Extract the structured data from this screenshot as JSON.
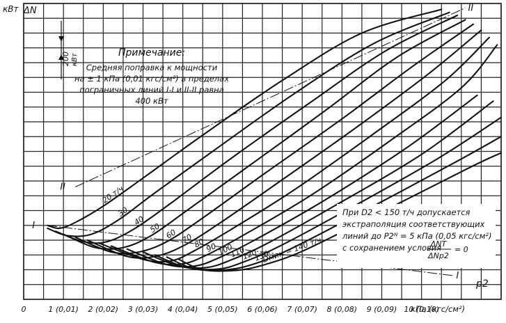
{
  "chart_data": {
    "type": "line",
    "ylabel_left": "кВт",
    "ylabel_symbol": "ΔN",
    "xlabel_symbol": "p2",
    "x_ticks": [
      "0",
      "1 (0,01)",
      "2 (0,02)",
      "3 (0,03)",
      "4 (0,04)",
      "5 (0,05)",
      "6 (0,06)",
      "7 (0,07)",
      "8 (0,08)",
      "9 (0,09)",
      "10 (0,10)"
    ],
    "x_unit": "кПа (кгс/см²)",
    "xlim": [
      0,
      12
    ],
    "ylim": [
      0,
      2000
    ],
    "grid": true,
    "scale_bar": {
      "value": "200",
      "unit": "кВт"
    },
    "boundary_lines": [
      {
        "name": "I",
        "points": [
          [
            0.6,
            500
          ],
          [
            10.8,
            160
          ]
        ]
      },
      {
        "name": "II",
        "points": [
          [
            1.3,
            760
          ],
          [
            11.1,
            1970
          ]
        ]
      }
    ],
    "series": [
      {
        "name": "20 т/ч",
        "points": [
          [
            0.6,
            500
          ],
          [
            0.9,
            480
          ],
          [
            1.3,
            520
          ],
          [
            2.0,
            630
          ],
          [
            3.0,
            820
          ],
          [
            4.5,
            1110
          ],
          [
            6.5,
            1480
          ],
          [
            8.5,
            1800
          ],
          [
            10.5,
            1960
          ]
        ]
      },
      {
        "name": "30",
        "points": [
          [
            0.6,
            480
          ],
          [
            1.1,
            430
          ],
          [
            1.7,
            440
          ],
          [
            2.4,
            540
          ],
          [
            3.3,
            720
          ],
          [
            4.8,
            1010
          ],
          [
            6.8,
            1390
          ],
          [
            8.8,
            1730
          ],
          [
            10.7,
            1940
          ]
        ]
      },
      {
        "name": "40",
        "points": [
          [
            0.8,
            460
          ],
          [
            1.5,
            390
          ],
          [
            2.1,
            390
          ],
          [
            2.8,
            480
          ],
          [
            3.7,
            650
          ],
          [
            5.2,
            950
          ],
          [
            7.2,
            1330
          ],
          [
            9.1,
            1680
          ],
          [
            10.9,
            1920
          ]
        ]
      },
      {
        "name": "50",
        "points": [
          [
            1.0,
            440
          ],
          [
            1.8,
            350
          ],
          [
            2.5,
            350
          ],
          [
            3.2,
            430
          ],
          [
            4.1,
            600
          ],
          [
            5.6,
            890
          ],
          [
            7.6,
            1280
          ],
          [
            9.4,
            1640
          ],
          [
            11.1,
            1890
          ]
        ]
      },
      {
        "name": "60",
        "points": [
          [
            1.3,
            420
          ],
          [
            2.2,
            320
          ],
          [
            2.9,
            320
          ],
          [
            3.6,
            390
          ],
          [
            4.5,
            550
          ],
          [
            6.0,
            840
          ],
          [
            8.0,
            1220
          ],
          [
            9.8,
            1580
          ],
          [
            11.3,
            1860
          ]
        ]
      },
      {
        "name": "70",
        "points": [
          [
            1.6,
            400
          ],
          [
            2.6,
            290
          ],
          [
            3.3,
            290
          ],
          [
            4.0,
            360
          ],
          [
            4.9,
            510
          ],
          [
            6.4,
            790
          ],
          [
            8.4,
            1170
          ],
          [
            10.2,
            1530
          ],
          [
            11.5,
            1820
          ]
        ]
      },
      {
        "name": "80",
        "points": [
          [
            1.9,
            380
          ],
          [
            3.0,
            270
          ],
          [
            3.7,
            260
          ],
          [
            4.3,
            330
          ],
          [
            5.2,
            470
          ],
          [
            6.8,
            740
          ],
          [
            8.8,
            1120
          ],
          [
            10.6,
            1480
          ],
          [
            11.7,
            1770
          ]
        ]
      },
      {
        "name": "90",
        "points": [
          [
            2.2,
            360
          ],
          [
            3.3,
            250
          ],
          [
            4.0,
            240
          ],
          [
            4.6,
            300
          ],
          [
            5.5,
            430
          ],
          [
            7.2,
            700
          ],
          [
            9.2,
            1070
          ],
          [
            11.0,
            1430
          ],
          [
            11.9,
            1720
          ]
        ]
      },
      {
        "name": "100",
        "points": [
          [
            2.6,
            340
          ],
          [
            3.6,
            235
          ],
          [
            4.3,
            225
          ],
          [
            4.9,
            280
          ],
          [
            5.8,
            400
          ],
          [
            7.5,
            660
          ],
          [
            9.6,
            1020
          ],
          [
            11.4,
            1380
          ]
        ]
      },
      {
        "name": "110",
        "points": [
          [
            3.0,
            320
          ],
          [
            3.9,
            225
          ],
          [
            4.6,
            215
          ],
          [
            5.2,
            265
          ],
          [
            6.1,
            375
          ],
          [
            7.8,
            630
          ],
          [
            10.0,
            980
          ],
          [
            11.8,
            1340
          ]
        ]
      },
      {
        "name": "120",
        "points": [
          [
            3.3,
            300
          ],
          [
            4.1,
            215
          ],
          [
            4.9,
            205
          ],
          [
            5.5,
            250
          ],
          [
            6.4,
            355
          ],
          [
            8.1,
            600
          ],
          [
            10.4,
            950
          ],
          [
            12.0,
            1230
          ]
        ]
      },
      {
        "name": "130",
        "points": [
          [
            3.6,
            285
          ],
          [
            4.3,
            205
          ],
          [
            5.1,
            200
          ],
          [
            5.8,
            240
          ],
          [
            6.7,
            340
          ],
          [
            8.4,
            575
          ],
          [
            10.8,
            920
          ],
          [
            12.0,
            1100
          ]
        ]
      },
      {
        "name": "Dмин = 140 т/ч",
        "points": [
          [
            3.9,
            270
          ],
          [
            4.5,
            200
          ],
          [
            5.3,
            195
          ],
          [
            6.0,
            230
          ],
          [
            7.0,
            325
          ],
          [
            8.7,
            550
          ],
          [
            11.2,
            890
          ],
          [
            12.0,
            990
          ]
        ]
      }
    ],
    "annotations": {
      "note_title": "Примечание:",
      "note_lines": [
        "Средняя поправка к мощности",
        "на ± 1 кПа (0,01 кгс/см²) в пределах",
        "пограничных линий I-I и II-II равна",
        "400 кВт"
      ],
      "extrapolation_lines": [
        "При D2 < 150 т/ч допускается",
        "экстраполяция соответствующих",
        "линий до P2ᴺ = 5 кПа (0,05 кгс/см²)",
        "с сохранением условия"
      ],
      "condition_numerator": "ΔNT",
      "condition_denominator": "ΔNp2",
      "condition_tail": "= 0"
    }
  }
}
